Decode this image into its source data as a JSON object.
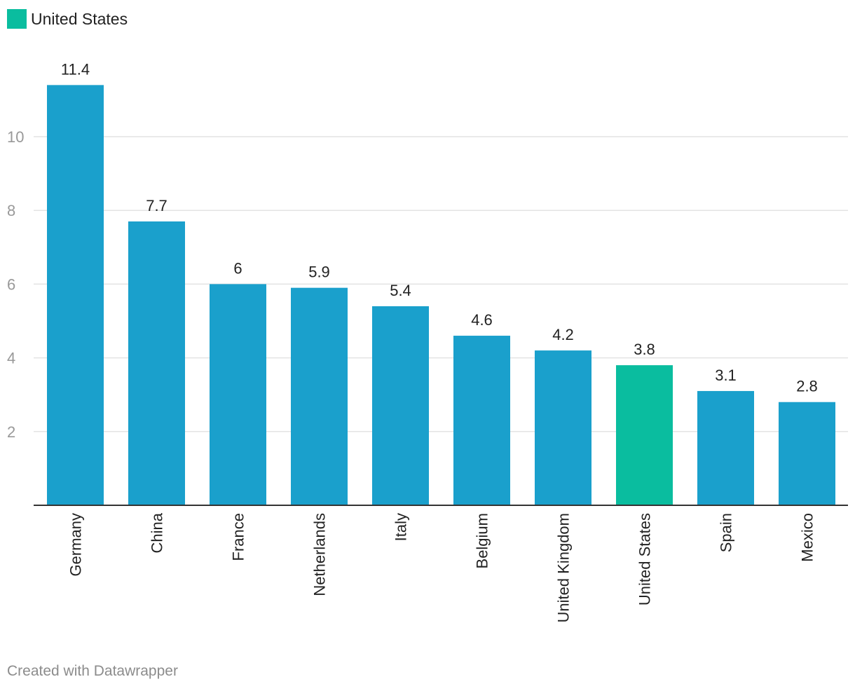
{
  "chart_data": {
    "type": "bar",
    "categories": [
      "Germany",
      "China",
      "France",
      "Netherlands",
      "Italy",
      "Belgium",
      "United Kingdom",
      "United States",
      "Spain",
      "Mexico"
    ],
    "values": [
      11.4,
      7.7,
      6,
      5.9,
      5.4,
      4.6,
      4.2,
      3.8,
      3.1,
      2.8
    ],
    "value_labels": [
      "11.4",
      "7.7",
      "6",
      "5.9",
      "5.4",
      "4.6",
      "4.2",
      "3.8",
      "3.1",
      "2.8"
    ],
    "highlight": "United States",
    "yticks": [
      2,
      4,
      6,
      8,
      10
    ],
    "ylim": [
      0,
      12.2
    ],
    "grid": true,
    "legend": {
      "label": "United States",
      "placement": "top-left"
    },
    "colors": {
      "default": "#1aa0cc",
      "highlight": "#0abd9f",
      "grid": "#e3e3e3",
      "axis": "#333333",
      "tick": "#999999"
    }
  },
  "footer": "Created with Datawrapper"
}
